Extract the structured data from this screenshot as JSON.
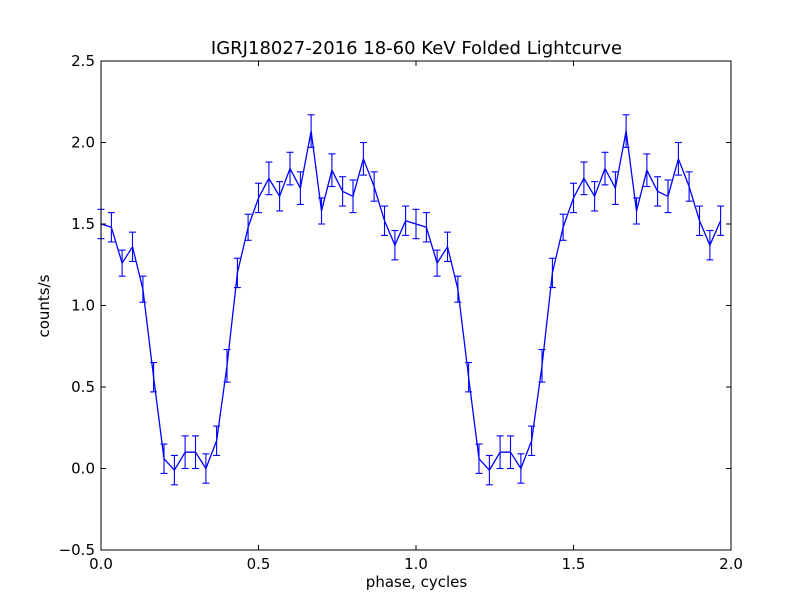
{
  "chart_data": {
    "type": "line",
    "title": "IGRJ18027-2016 18-60 KeV Folded Lightcurve",
    "xlabel": "phase, cycles",
    "ylabel": "counts/s",
    "xlim": [
      0.0,
      2.0
    ],
    "ylim": [
      -0.5,
      2.5
    ],
    "x_ticks": [
      0.0,
      0.5,
      1.0,
      1.5,
      2.0
    ],
    "x_tick_labels": [
      "0.0",
      "0.5",
      "1.0",
      "1.5",
      "2.0"
    ],
    "y_ticks": [
      -0.5,
      0.0,
      0.5,
      1.0,
      1.5,
      2.0,
      2.5
    ],
    "y_tick_labels": [
      "−0.5",
      "0.0",
      "0.5",
      "1.0",
      "1.5",
      "2.0",
      "2.5"
    ],
    "grid": false,
    "legend": "none",
    "line_color": "#0000ff",
    "series": [
      {
        "x": [
          0.0,
          0.033,
          0.067,
          0.1,
          0.133,
          0.167,
          0.2,
          0.233,
          0.267,
          0.3,
          0.333,
          0.367,
          0.4,
          0.433,
          0.467,
          0.5,
          0.533,
          0.567,
          0.6,
          0.633,
          0.667,
          0.7,
          0.733,
          0.767,
          0.8,
          0.833,
          0.867,
          0.9,
          0.933,
          0.967,
          1.0,
          1.033,
          1.067,
          1.1,
          1.133,
          1.167,
          1.2,
          1.233,
          1.267,
          1.3,
          1.333,
          1.367,
          1.4,
          1.433,
          1.467,
          1.5,
          1.533,
          1.567,
          1.6,
          1.633,
          1.667,
          1.7,
          1.733,
          1.767,
          1.8,
          1.833,
          1.867,
          1.9,
          1.933,
          1.967
        ],
        "y": [
          1.5,
          1.48,
          1.26,
          1.36,
          1.1,
          0.56,
          0.06,
          -0.01,
          0.1,
          0.1,
          0.0,
          0.17,
          0.63,
          1.2,
          1.48,
          1.66,
          1.78,
          1.67,
          1.84,
          1.72,
          2.07,
          1.58,
          1.83,
          1.7,
          1.67,
          1.9,
          1.73,
          1.52,
          1.37,
          1.52,
          1.5,
          1.48,
          1.26,
          1.36,
          1.1,
          0.56,
          0.06,
          -0.01,
          0.1,
          0.1,
          0.0,
          0.17,
          0.63,
          1.2,
          1.48,
          1.66,
          1.78,
          1.67,
          1.84,
          1.72,
          2.07,
          1.58,
          1.83,
          1.7,
          1.67,
          1.9,
          1.73,
          1.52,
          1.37,
          1.52
        ],
        "yerr": [
          0.09,
          0.09,
          0.08,
          0.09,
          0.08,
          0.09,
          0.09,
          0.09,
          0.1,
          0.1,
          0.09,
          0.09,
          0.1,
          0.09,
          0.08,
          0.09,
          0.1,
          0.09,
          0.1,
          0.1,
          0.1,
          0.08,
          0.1,
          0.09,
          0.1,
          0.1,
          0.09,
          0.09,
          0.09,
          0.09,
          0.09,
          0.09,
          0.08,
          0.09,
          0.08,
          0.09,
          0.09,
          0.09,
          0.1,
          0.1,
          0.09,
          0.09,
          0.1,
          0.09,
          0.08,
          0.09,
          0.1,
          0.09,
          0.1,
          0.1,
          0.1,
          0.08,
          0.1,
          0.09,
          0.1,
          0.1,
          0.09,
          0.09,
          0.09,
          0.09
        ]
      }
    ]
  }
}
